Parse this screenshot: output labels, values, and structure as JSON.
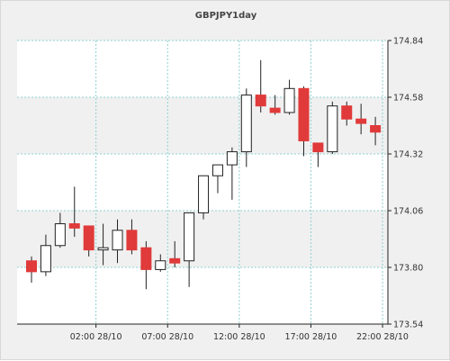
{
  "chart_data": {
    "type": "candlestick",
    "title": "GBPJPY1day",
    "xlabel": "",
    "ylabel": "",
    "grid": true,
    "ylim": [
      173.54,
      174.84
    ],
    "y_ticks": [
      "174.84",
      "174.58",
      "174.32",
      "174.06",
      "173.80",
      "173.54"
    ],
    "x_ticks": [
      {
        "label": "02:00 28/10",
        "index": 4.5
      },
      {
        "label": "07:00 28/10",
        "index": 9.5
      },
      {
        "label": "12:00 28/10",
        "index": 14.5
      },
      {
        "label": "17:00 28/10",
        "index": 19.5
      },
      {
        "label": "22:00 28/10",
        "index": 24.5
      }
    ],
    "colors": {
      "bull": "#ffffff",
      "bear": "#e03a3a",
      "outline": "#222222",
      "grid": "#8fd0d0",
      "band": "#ffffff",
      "background": "#f0f0f0"
    },
    "candles": [
      {
        "open": 173.83,
        "high": 173.85,
        "low": 173.73,
        "close": 173.78
      },
      {
        "open": 173.78,
        "high": 173.95,
        "low": 173.76,
        "close": 173.9
      },
      {
        "open": 173.9,
        "high": 174.05,
        "low": 173.89,
        "close": 174.0
      },
      {
        "open": 174.0,
        "high": 174.17,
        "low": 173.94,
        "close": 173.98
      },
      {
        "open": 173.99,
        "high": 173.99,
        "low": 173.85,
        "close": 173.88
      },
      {
        "open": 173.88,
        "high": 174.0,
        "low": 173.81,
        "close": 173.89
      },
      {
        "open": 173.88,
        "high": 174.02,
        "low": 173.82,
        "close": 173.97
      },
      {
        "open": 173.97,
        "high": 174.02,
        "low": 173.86,
        "close": 173.88
      },
      {
        "open": 173.89,
        "high": 173.92,
        "low": 173.7,
        "close": 173.79
      },
      {
        "open": 173.79,
        "high": 173.86,
        "low": 173.78,
        "close": 173.83
      },
      {
        "open": 173.84,
        "high": 173.92,
        "low": 173.8,
        "close": 173.82
      },
      {
        "open": 173.83,
        "high": 174.05,
        "low": 173.71,
        "close": 174.05
      },
      {
        "open": 174.05,
        "high": 174.22,
        "low": 174.02,
        "close": 174.22
      },
      {
        "open": 174.22,
        "high": 174.27,
        "low": 174.14,
        "close": 174.27
      },
      {
        "open": 174.27,
        "high": 174.35,
        "low": 174.11,
        "close": 174.33
      },
      {
        "open": 174.33,
        "high": 174.62,
        "low": 174.26,
        "close": 174.59
      },
      {
        "open": 174.59,
        "high": 174.75,
        "low": 174.51,
        "close": 174.54
      },
      {
        "open": 174.53,
        "high": 174.59,
        "low": 174.5,
        "close": 174.51
      },
      {
        "open": 174.51,
        "high": 174.66,
        "low": 174.5,
        "close": 174.62
      },
      {
        "open": 174.62,
        "high": 174.63,
        "low": 174.31,
        "close": 174.38
      },
      {
        "open": 174.37,
        "high": 174.37,
        "low": 174.26,
        "close": 174.33
      },
      {
        "open": 174.33,
        "high": 174.56,
        "low": 174.32,
        "close": 174.54
      },
      {
        "open": 174.54,
        "high": 174.56,
        "low": 174.45,
        "close": 174.48
      },
      {
        "open": 174.48,
        "high": 174.55,
        "low": 174.41,
        "close": 174.46
      },
      {
        "open": 174.45,
        "high": 174.49,
        "low": 174.36,
        "close": 174.42
      }
    ]
  }
}
